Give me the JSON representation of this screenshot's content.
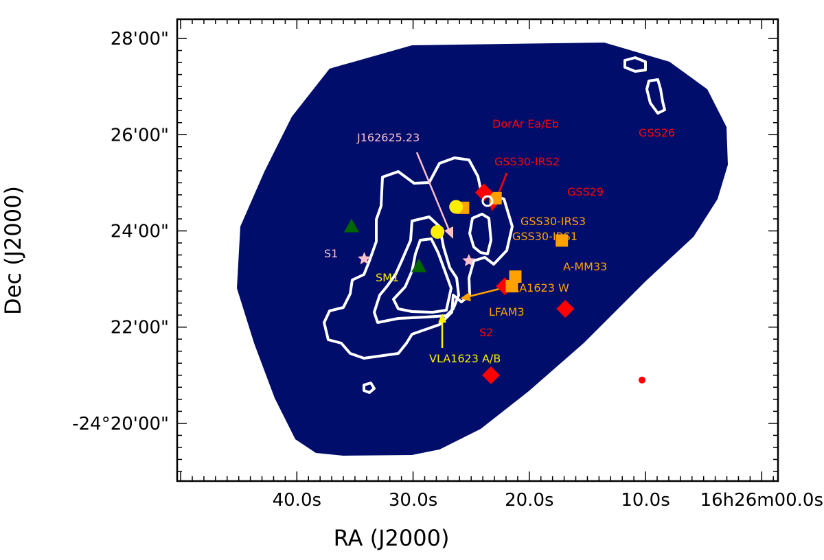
{
  "chart_data": {
    "type": "scatter",
    "title": "",
    "xlabel": "RA (J2000)",
    "ylabel": "Dec (J2000)",
    "x_ticks": [
      {
        "value": 40,
        "label": "40.0s"
      },
      {
        "value": 30,
        "label": "30.0s"
      },
      {
        "value": 20,
        "label": "20.0s"
      },
      {
        "value": 10,
        "label": "10.0s"
      },
      {
        "value": 0,
        "label": "16h26m00.0s"
      }
    ],
    "y_ticks": [
      {
        "value": 20,
        "label": "-24°20'00\""
      },
      {
        "value": 22,
        "label": "22'00\""
      },
      {
        "value": 24,
        "label": "24'00\""
      },
      {
        "value": 26,
        "label": "26'00\""
      },
      {
        "value": 28,
        "label": "28'00\""
      }
    ],
    "xlim": [
      50.3,
      -1.4
    ],
    "ylim": [
      28.4,
      18.8
    ],
    "colors": {
      "background": "#000d6b",
      "contour": "#ffffff",
      "red": "#ff0000",
      "orange": "#ffa200",
      "yellow": "#ffee00",
      "pink": "#ffc0cb",
      "green": "#006600"
    },
    "sources": [
      {
        "name": "DorAr Ea/Eb",
        "marker": "diamond",
        "color": "red",
        "ra_s": 23.3,
        "dec_min": 21.0
      },
      {
        "name": "GSS26",
        "marker": "circle-ring",
        "color": "red",
        "ra_s": 10.3,
        "dec_min": 20.9
      },
      {
        "name": "GSS30-IRS2",
        "marker": "diamond",
        "color": "red",
        "ra_s": 22.1,
        "dec_min": 22.85
      },
      {
        "name": "GSS29",
        "marker": "diamond",
        "color": "red",
        "ra_s": 16.9,
        "dec_min": 22.38
      },
      {
        "name": "GSS30-IRS3",
        "marker": "square",
        "color": "orange",
        "ra_s": 21.5,
        "dec_min": 22.85
      },
      {
        "name": "GSS30-IRS1",
        "marker": "square",
        "color": "orange",
        "ra_s": 21.2,
        "dec_min": 23.05
      },
      {
        "name": "A-MM33",
        "marker": "square",
        "color": "orange",
        "ra_s": 17.2,
        "dec_min": 23.8
      },
      {
        "name": "VLA1623 W",
        "marker": "square",
        "color": "orange",
        "ra_s": 25.7,
        "dec_min": 24.48
      },
      {
        "name": "LFAM3",
        "marker": "square",
        "color": "orange",
        "ra_s": 22.9,
        "dec_min": 24.68
      },
      {
        "name": "S2",
        "marker": "diamond",
        "color": "red",
        "ra_s": 23.9,
        "dec_min": 24.8
      },
      {
        "name": "VLA1623 A/B",
        "marker": "circle",
        "color": "yellow",
        "ra_s": 26.3,
        "dec_min": 24.5
      },
      {
        "name": "SM1",
        "marker": "circle",
        "color": "yellow",
        "ra_s": 27.9,
        "dec_min": 23.98
      },
      {
        "name": "J162625.23",
        "marker": "star",
        "color": "pink",
        "ra_s": 25.2,
        "dec_min": 23.38
      },
      {
        "name": "S1",
        "marker": "star",
        "color": "pink",
        "ra_s": 34.2,
        "dec_min": 23.42
      },
      {
        "name": "",
        "marker": "triangle",
        "color": "green",
        "ra_s": 29.5,
        "dec_min": 23.27
      },
      {
        "name": "",
        "marker": "triangle",
        "color": "green",
        "ra_s": 35.3,
        "dec_min": 24.1
      },
      {
        "name": "",
        "marker": "ring",
        "color": "white",
        "ra_s": 23.6,
        "dec_min": 24.62
      }
    ]
  }
}
